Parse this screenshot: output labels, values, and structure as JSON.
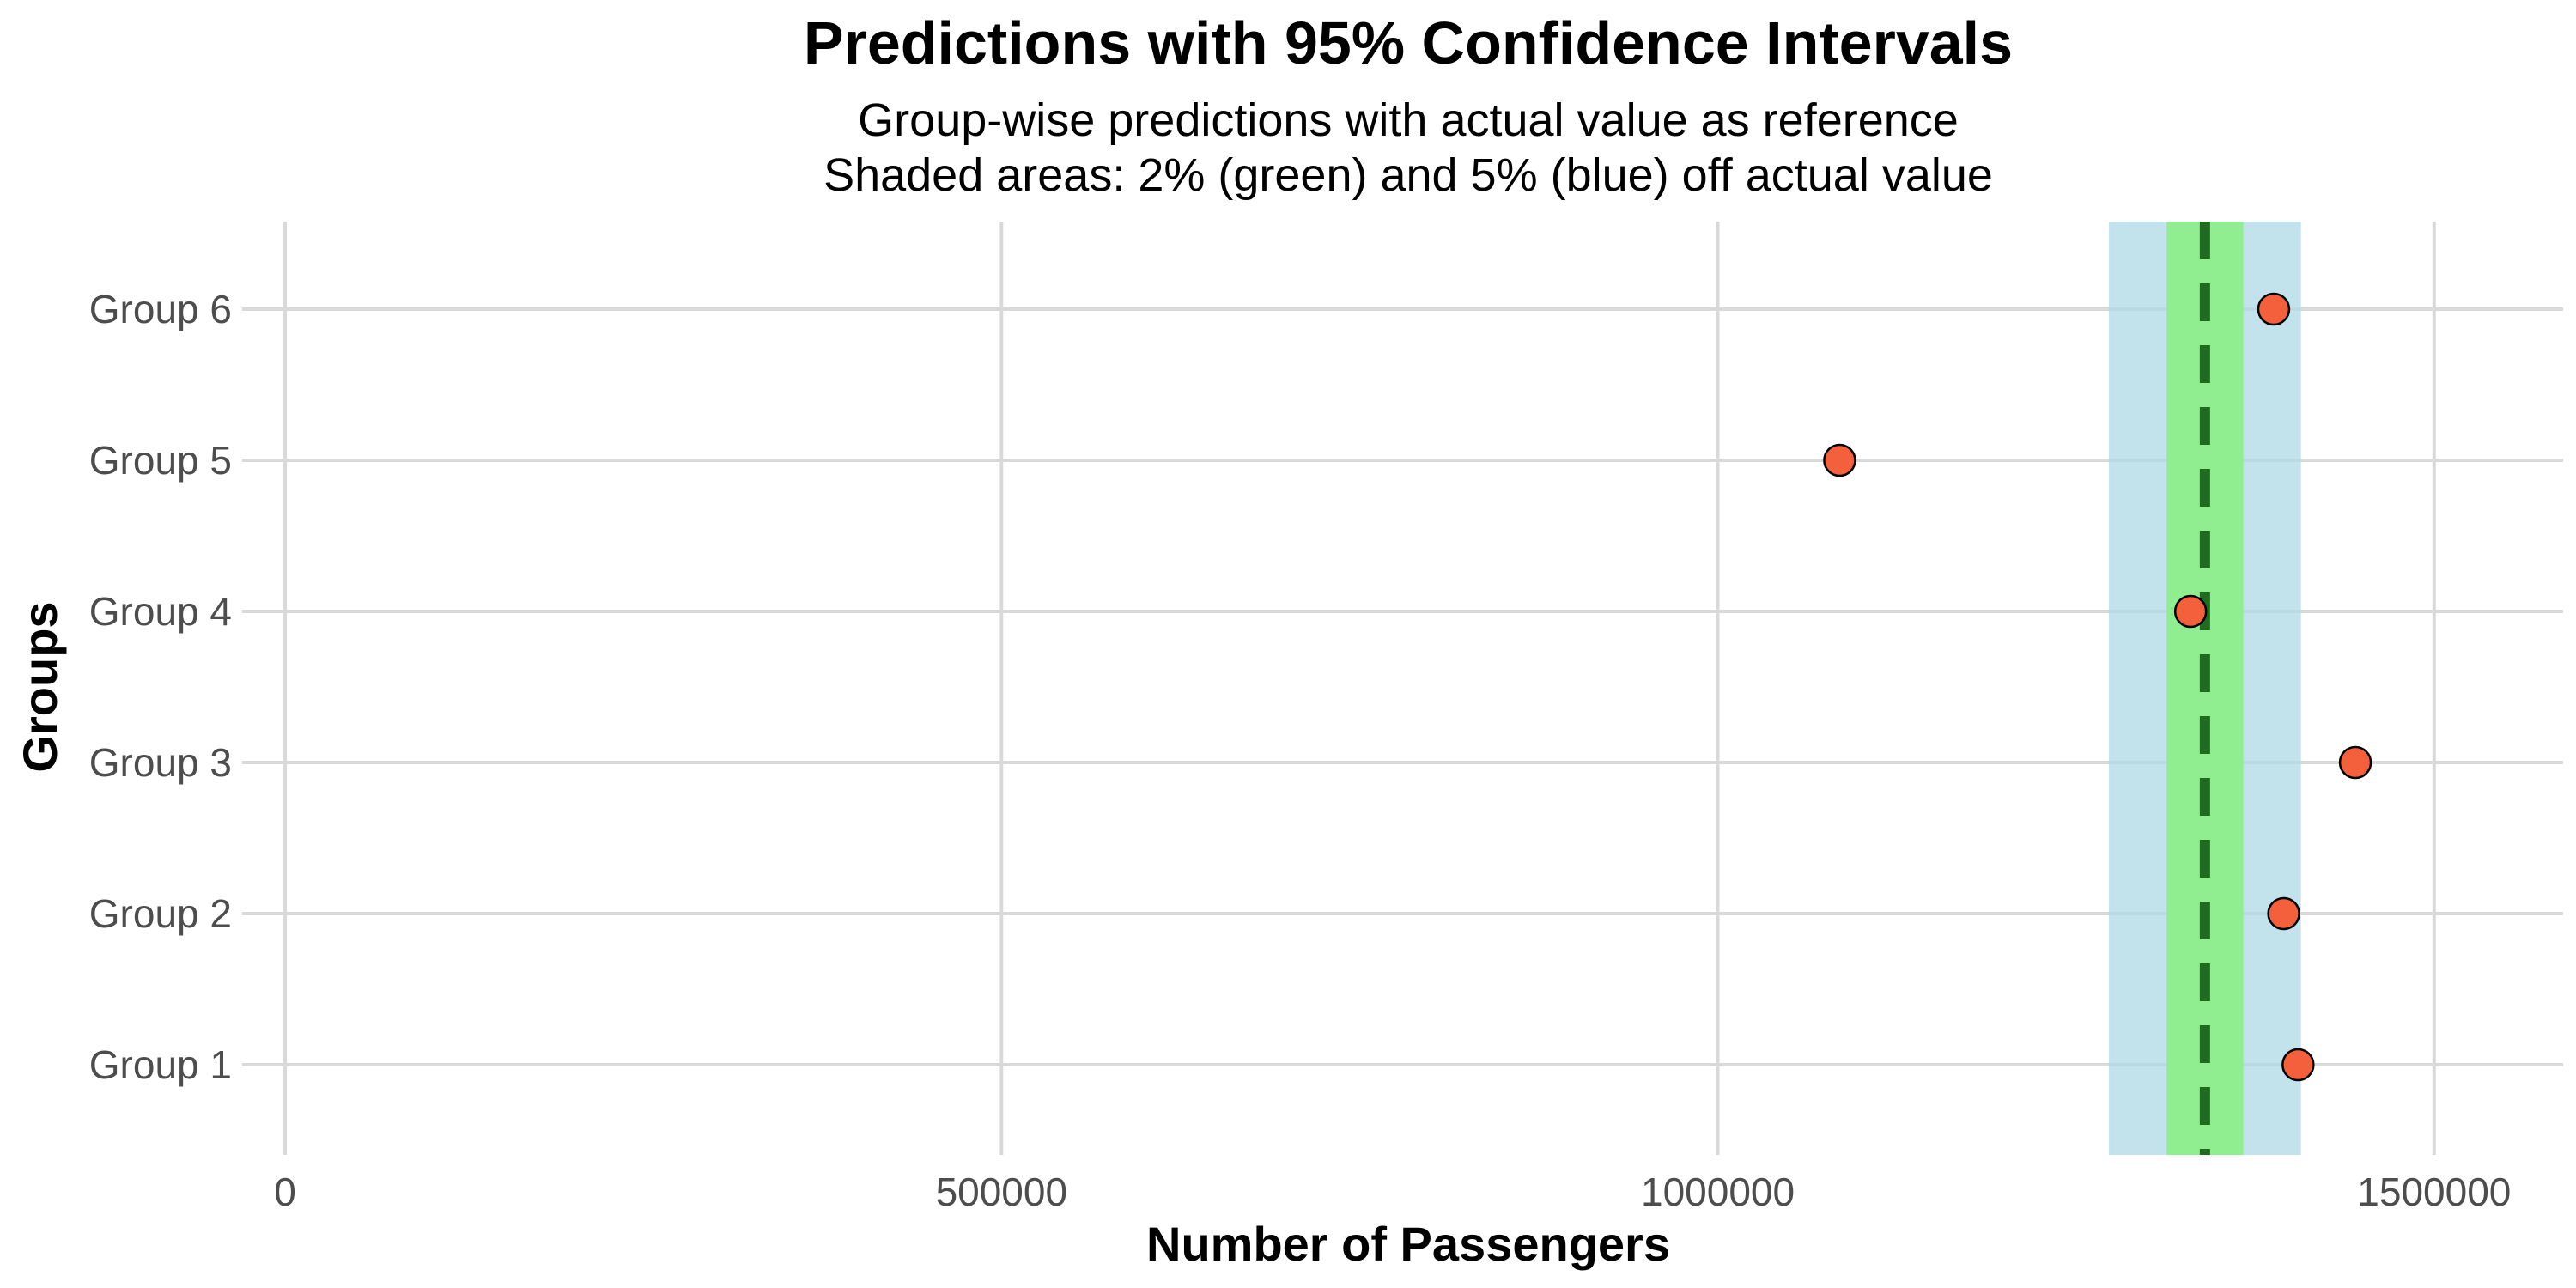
{
  "chart_data": {
    "type": "scatter",
    "title": "Predictions with 95% Confidence Intervals",
    "subtitle_lines": [
      "Group-wise predictions with actual value as reference",
      "Shaded areas: 2% (green) and 5% (blue) off actual value"
    ],
    "xlabel": "Number of Passengers",
    "ylabel": "Groups",
    "xlim": [
      -30000,
      1590000
    ],
    "x_ticks": [
      {
        "value": 0,
        "label": "0"
      },
      {
        "value": 500000,
        "label": "500000"
      },
      {
        "value": 1000000,
        "label": "1000000"
      },
      {
        "value": 1500000,
        "label": "1500000"
      }
    ],
    "categories": [
      "Group 1",
      "Group 2",
      "Group 3",
      "Group 4",
      "Group 5",
      "Group 6"
    ],
    "actual_value": 1340000,
    "bands": [
      {
        "name": "5% off actual value",
        "pct": 0.05,
        "color": "#add8e6",
        "opacity": 0.75
      },
      {
        "name": "2% off actual value",
        "pct": 0.02,
        "color": "#90ee90",
        "opacity": 1.0
      }
    ],
    "series": [
      {
        "values": [
          1405000,
          1395000,
          1445000,
          1330000,
          1085000,
          1388000
        ],
        "color": "#f4603c"
      }
    ],
    "reference_line": {
      "color": "#1f6b1f",
      "style": "dashed"
    },
    "grid": true
  }
}
